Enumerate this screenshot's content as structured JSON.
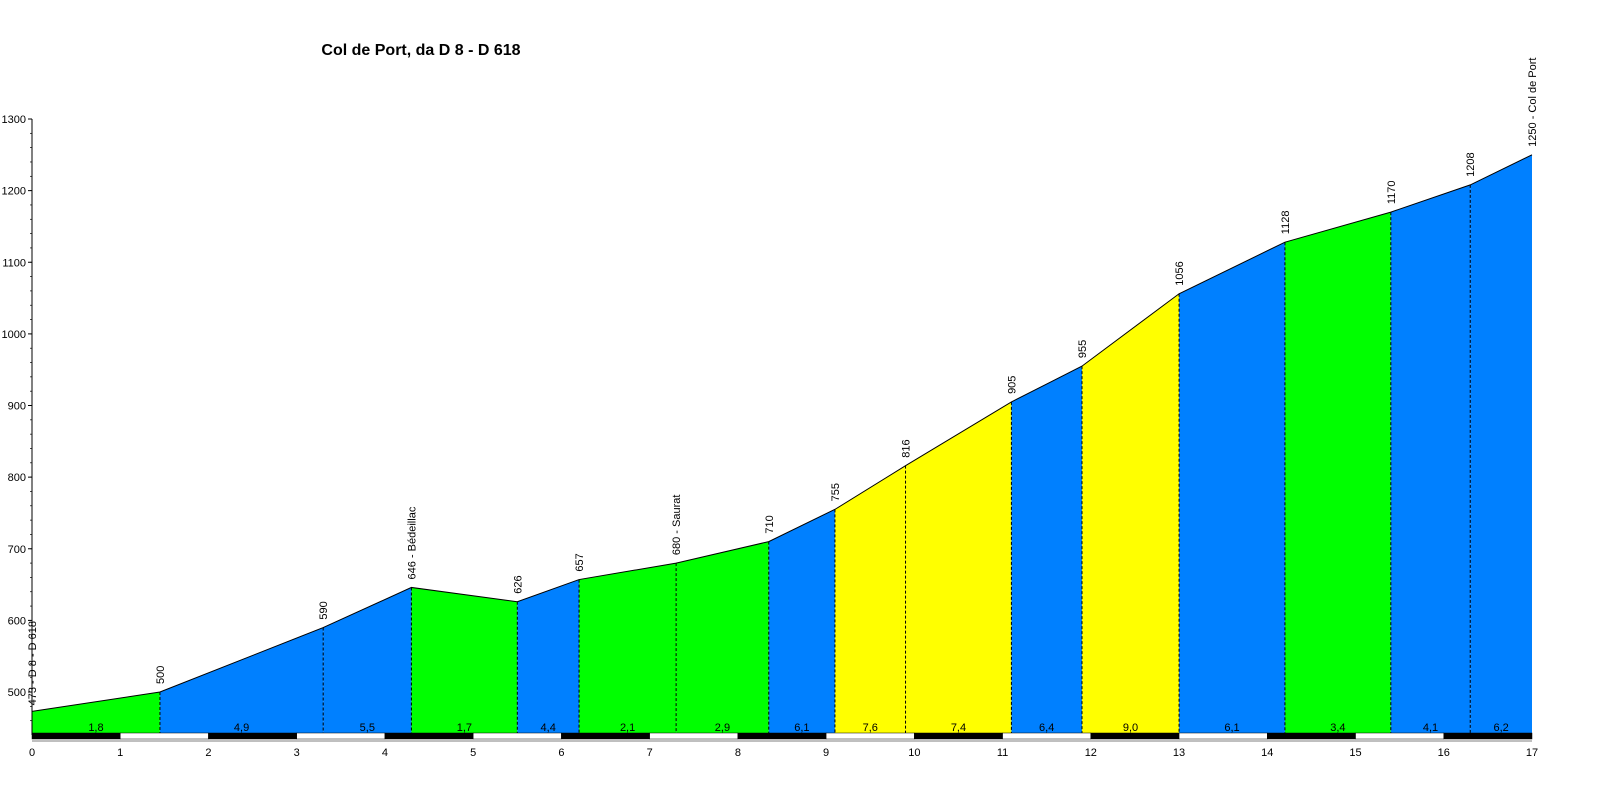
{
  "chart_data": {
    "type": "area",
    "title": "Col de Port, da D 8 - D 618",
    "xlabel": "",
    "ylabel": "",
    "xlim": [
      0,
      17
    ],
    "ylim": [
      440,
      1300
    ],
    "x_ticks": [
      0,
      1,
      2,
      3,
      4,
      5,
      6,
      7,
      8,
      9,
      10,
      11,
      12,
      13,
      14,
      15,
      16,
      17
    ],
    "y_ticks": [
      500,
      600,
      700,
      800,
      900,
      1000,
      1100,
      1200,
      1300
    ],
    "grid": false,
    "points": [
      {
        "x": 0.0,
        "y": 473,
        "label": "473 - D 8 - D 618"
      },
      {
        "x": 1.45,
        "y": 500,
        "label": "500"
      },
      {
        "x": 3.3,
        "y": 590,
        "label": "590"
      },
      {
        "x": 4.3,
        "y": 646,
        "label": "646 - Bédeillac"
      },
      {
        "x": 5.5,
        "y": 626,
        "label": "626"
      },
      {
        "x": 6.2,
        "y": 657,
        "label": "657"
      },
      {
        "x": 7.3,
        "y": 680,
        "label": "680 - Saurat"
      },
      {
        "x": 8.35,
        "y": 710,
        "label": "710"
      },
      {
        "x": 9.1,
        "y": 755,
        "label": "755"
      },
      {
        "x": 9.9,
        "y": 816,
        "label": "816"
      },
      {
        "x": 11.1,
        "y": 905,
        "label": "905"
      },
      {
        "x": 11.9,
        "y": 955,
        "label": "955"
      },
      {
        "x": 13.0,
        "y": 1056,
        "label": "1056"
      },
      {
        "x": 14.2,
        "y": 1128,
        "label": "1128"
      },
      {
        "x": 15.4,
        "y": 1170,
        "label": "1170"
      },
      {
        "x": 16.3,
        "y": 1208,
        "label": "1208"
      },
      {
        "x": 17.0,
        "y": 1250,
        "label": "1250 - Col de Port"
      }
    ],
    "segments": [
      {
        "grade": "1,8",
        "color": "#00ff00"
      },
      {
        "grade": "4,9",
        "color": "#0080ff"
      },
      {
        "grade": "5,5",
        "color": "#0080ff"
      },
      {
        "grade": "1,7",
        "color": "#00ff00"
      },
      {
        "grade": "4,4",
        "color": "#0080ff"
      },
      {
        "grade": "2,1",
        "color": "#00ff00"
      },
      {
        "grade": "2,9",
        "color": "#00ff00"
      },
      {
        "grade": "6,1",
        "color": "#0080ff"
      },
      {
        "grade": "7,6",
        "color": "#ffff00"
      },
      {
        "grade": "7,4",
        "color": "#ffff00"
      },
      {
        "grade": "6,4",
        "color": "#0080ff"
      },
      {
        "grade": "9,0",
        "color": "#ffff00"
      },
      {
        "grade": "6,1",
        "color": "#0080ff"
      },
      {
        "grade": "3,4",
        "color": "#00ff00"
      },
      {
        "grade": "4,1",
        "color": "#0080ff"
      },
      {
        "grade": "6,2",
        "color": "#0080ff"
      }
    ]
  }
}
